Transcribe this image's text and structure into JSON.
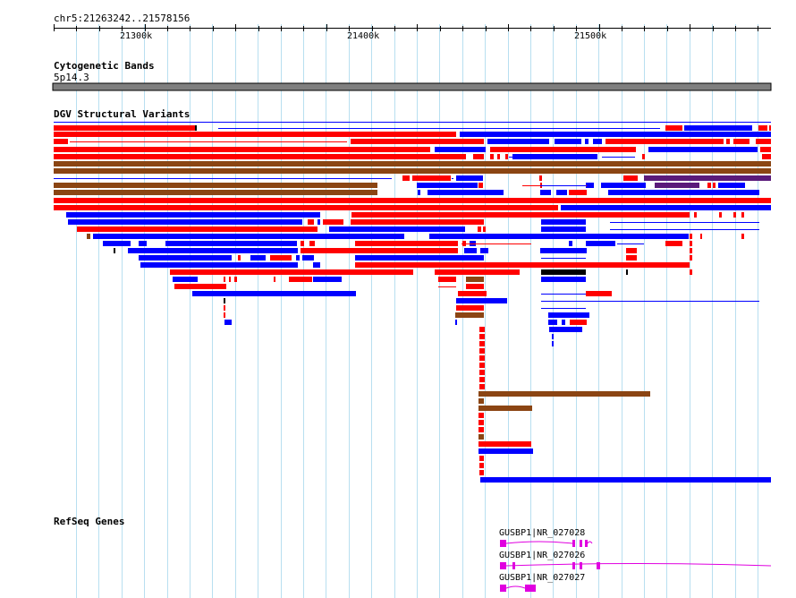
{
  "browser": {
    "location": "chr5:21263242..21578156",
    "ruler_ticks": [
      "21300k",
      "21400k",
      "21500k"
    ]
  },
  "tracks": {
    "cytoband": {
      "title": "Cytogenetic Bands",
      "band": "5p14.3",
      "band_color": "#7f7f7f"
    },
    "dgv": {
      "title": "DGV Structural Variants",
      "colors": {
        "loss": "#ff0000",
        "gain": "#0000ff",
        "both": "#8b4513",
        "other": "#000000",
        "inversion": "#5a1a7a"
      }
    },
    "refseq": {
      "title": "RefSeq Genes",
      "gene_color": "#e000e0",
      "genes": [
        {
          "label": "GUSBP1|NR_027028"
        },
        {
          "label": "GUSBP1|NR_027026"
        },
        {
          "label": "GUSBP1|NR_027027"
        }
      ]
    }
  },
  "colors": {
    "gridline": "#b8dff0",
    "background": "#ffffff"
  }
}
